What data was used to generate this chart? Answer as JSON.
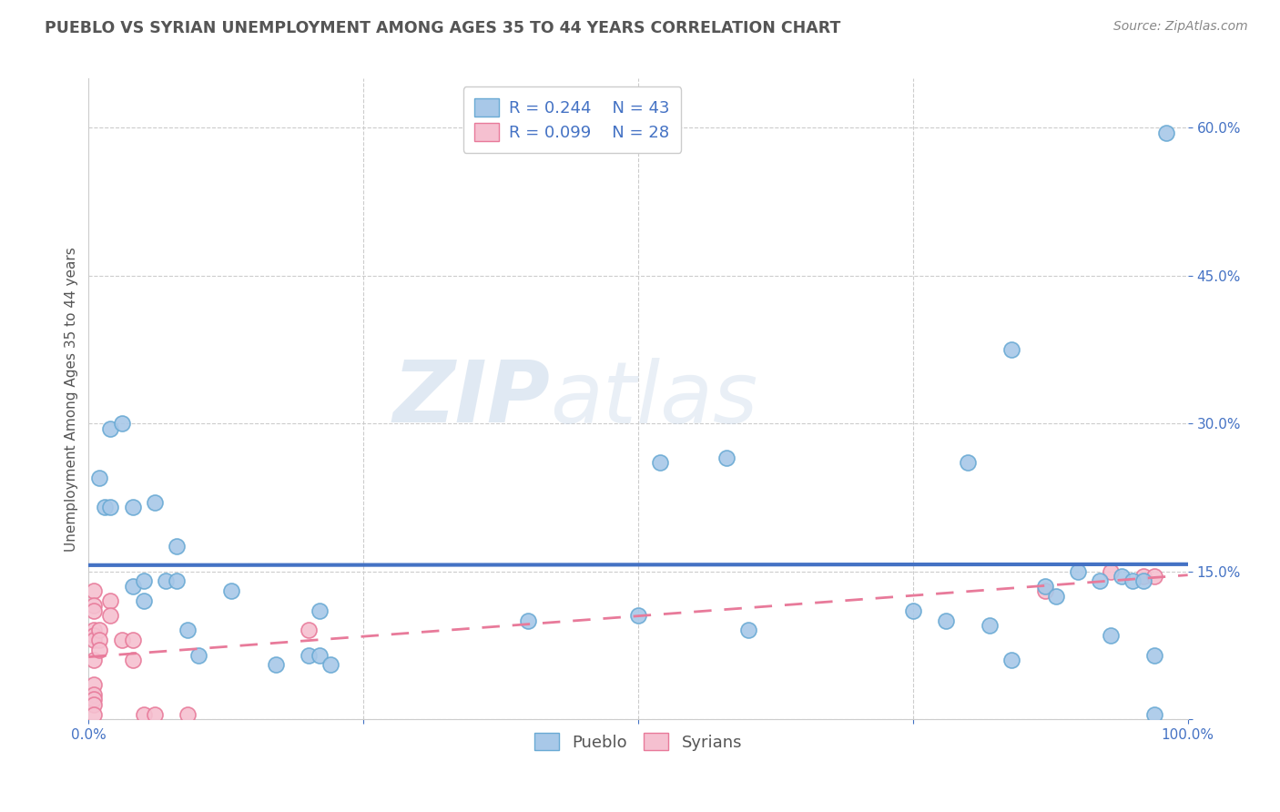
{
  "title": "PUEBLO VS SYRIAN UNEMPLOYMENT AMONG AGES 35 TO 44 YEARS CORRELATION CHART",
  "source": "Source: ZipAtlas.com",
  "ylabel": "Unemployment Among Ages 35 to 44 years",
  "xlim": [
    0.0,
    1.0
  ],
  "ylim": [
    0.0,
    0.65
  ],
  "xticks": [
    0.0,
    0.25,
    0.5,
    0.75,
    1.0
  ],
  "xtick_labels": [
    "0.0%",
    "",
    "",
    "",
    "100.0%"
  ],
  "ytick_labels": [
    "",
    "15.0%",
    "30.0%",
    "45.0%",
    "60.0%"
  ],
  "yticks": [
    0.0,
    0.15,
    0.3,
    0.45,
    0.6
  ],
  "pueblo_color": "#a8c8e8",
  "pueblo_edge_color": "#6aaad4",
  "syrian_color": "#f5c0d0",
  "syrian_edge_color": "#e87a9a",
  "pueblo_R": 0.244,
  "pueblo_N": 43,
  "syrian_R": 0.099,
  "syrian_N": 28,
  "pueblo_line_color": "#4472c4",
  "syrian_line_color": "#e87a9a",
  "watermark_zip": "ZIP",
  "watermark_atlas": "atlas",
  "background_color": "#ffffff",
  "grid_color": "#cccccc",
  "legend_text_color": "#4472c4",
  "title_color": "#555555",
  "source_color": "#888888",
  "pueblo_points_x": [
    0.01,
    0.015,
    0.02,
    0.02,
    0.03,
    0.04,
    0.04,
    0.05,
    0.05,
    0.06,
    0.07,
    0.08,
    0.08,
    0.09,
    0.1,
    0.13,
    0.17,
    0.2,
    0.21,
    0.22,
    0.5,
    0.52,
    0.58,
    0.6,
    0.75,
    0.78,
    0.8,
    0.82,
    0.84,
    0.87,
    0.88,
    0.9,
    0.92,
    0.93,
    0.94,
    0.95,
    0.96,
    0.97,
    0.97,
    0.98,
    0.21,
    0.4,
    0.84
  ],
  "pueblo_points_y": [
    0.245,
    0.215,
    0.215,
    0.295,
    0.3,
    0.215,
    0.135,
    0.12,
    0.14,
    0.22,
    0.14,
    0.14,
    0.175,
    0.09,
    0.065,
    0.13,
    0.055,
    0.065,
    0.065,
    0.055,
    0.105,
    0.26,
    0.265,
    0.09,
    0.11,
    0.1,
    0.26,
    0.095,
    0.375,
    0.135,
    0.125,
    0.15,
    0.14,
    0.085,
    0.145,
    0.14,
    0.14,
    0.065,
    0.005,
    0.595,
    0.11,
    0.1,
    0.06
  ],
  "syrian_points_x": [
    0.005,
    0.005,
    0.005,
    0.005,
    0.005,
    0.005,
    0.005,
    0.005,
    0.005,
    0.005,
    0.005,
    0.005,
    0.01,
    0.01,
    0.01,
    0.02,
    0.02,
    0.03,
    0.04,
    0.04,
    0.05,
    0.06,
    0.09,
    0.2,
    0.87,
    0.93,
    0.96,
    0.97
  ],
  "syrian_points_y": [
    0.13,
    0.115,
    0.11,
    0.09,
    0.085,
    0.08,
    0.06,
    0.035,
    0.025,
    0.02,
    0.015,
    0.005,
    0.09,
    0.08,
    0.07,
    0.12,
    0.105,
    0.08,
    0.08,
    0.06,
    0.005,
    0.005,
    0.005,
    0.09,
    0.13,
    0.15,
    0.145,
    0.145
  ]
}
